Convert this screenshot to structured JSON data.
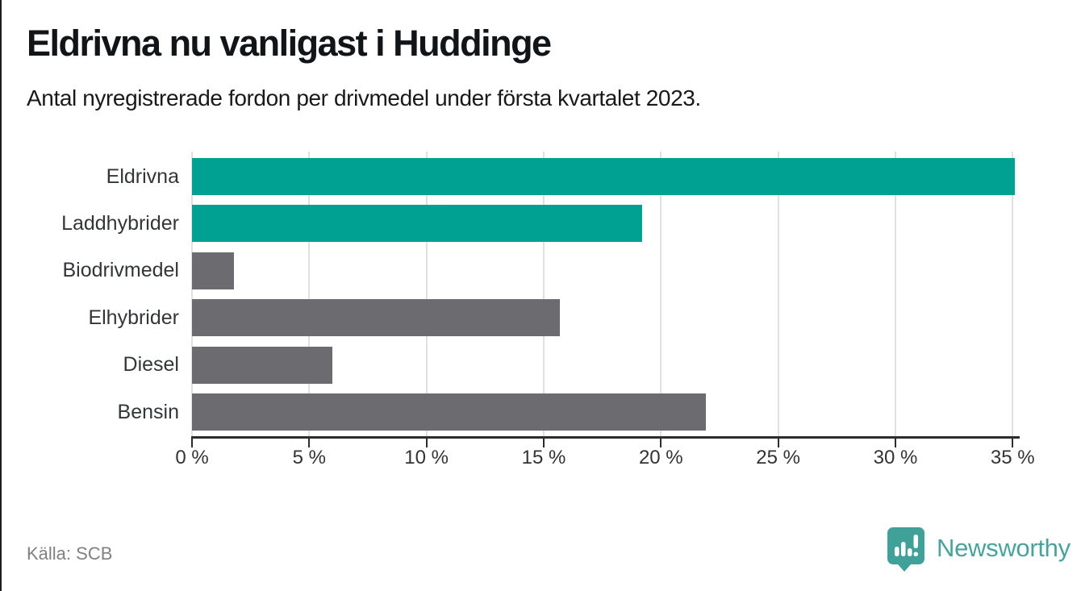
{
  "header": {
    "title": "Eldrivna nu vanligast i Huddinge",
    "subtitle": "Antal nyregistrerade fordon per drivmedel under första kvartalet 2023."
  },
  "footer": {
    "source": "Källa: SCB",
    "brand": "Newsworthy"
  },
  "colors": {
    "highlight_teal": "#00a192",
    "default_gray": "#6b6b70",
    "gridline": "#e0e0e0",
    "axis": "#2d2d2d",
    "logo_teal": "#4aa39b",
    "logo_icon_teal": "#3fa198"
  },
  "chart_data": {
    "type": "bar",
    "orientation": "horizontal",
    "title": "Eldrivna nu vanligast i Huddinge",
    "subtitle": "Antal nyregistrerade fordon per drivmedel under första kvartalet 2023.",
    "source": "Källa: SCB",
    "categories": [
      "Eldrivna",
      "Laddhybrider",
      "Biodrivmedel",
      "Elhybrider",
      "Diesel",
      "Bensin"
    ],
    "values": [
      35.1,
      19.2,
      1.8,
      15.7,
      6,
      21.9
    ],
    "bar_colors": [
      "#00a192",
      "#00a192",
      "#6b6b70",
      "#6b6b70",
      "#6b6b70",
      "#6b6b70"
    ],
    "unit": "%",
    "x_ticks": [
      0,
      5,
      10,
      15,
      20,
      25,
      30,
      35
    ],
    "tick_suffix": " %",
    "xlim": [
      0,
      35.3
    ],
    "grid": true,
    "legend": "none",
    "ylabel": "",
    "xlabel": ""
  }
}
